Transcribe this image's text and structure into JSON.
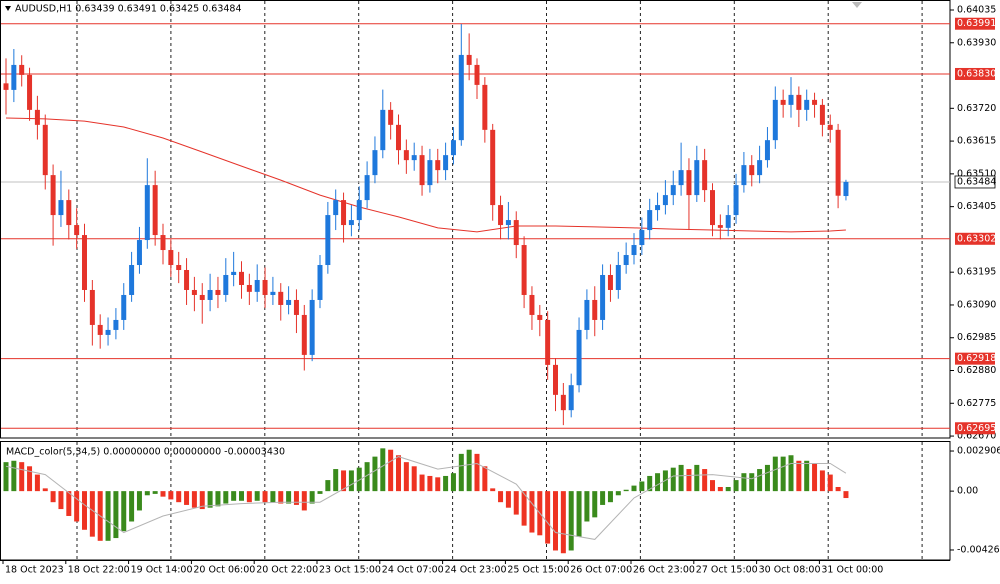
{
  "chart_data": {
    "type": "candlestick",
    "title": "AUDUSD,H1 0.63439 0.63491 0.63425 0.63484",
    "categories": [
      "18 Oct 2023",
      null,
      null,
      null,
      null,
      null,
      null,
      null,
      "18 Oct 22:00",
      null,
      null,
      null,
      null,
      null,
      null,
      null,
      "19 Oct 14:00",
      null,
      null,
      null,
      null,
      null,
      null,
      null,
      "20 Oct 06:00",
      null,
      null,
      null,
      null,
      null,
      null,
      null,
      "20 Oct 22:00",
      null,
      null,
      null,
      null,
      null,
      null,
      null,
      "23 Oct 15:00",
      null,
      null,
      null,
      null,
      null,
      null,
      null,
      "24 Oct 07:00",
      null,
      null,
      null,
      null,
      null,
      null,
      null,
      "24 Oct 23:00",
      null,
      null,
      null,
      null,
      null,
      null,
      null,
      "25 Oct 15:00",
      null,
      null,
      null,
      null,
      null,
      null,
      null,
      "26 Oct 07:00",
      null,
      null,
      null,
      null,
      null,
      null,
      null,
      "26 Oct 23:00",
      null,
      null,
      null,
      null,
      null,
      null,
      null,
      "27 Oct 15:00",
      null,
      null,
      null,
      null,
      null,
      null,
      null,
      "30 Oct 08:00",
      null,
      null,
      null,
      null,
      null,
      null,
      null,
      "31 Oct 00:00",
      null,
      null,
      null
    ],
    "ohlc": [
      [
        0.638,
        0.6388,
        0.637,
        0.63779
      ],
      [
        0.63779,
        0.6391,
        0.6374,
        0.63859
      ],
      [
        0.63859,
        0.6389,
        0.6379,
        0.63827
      ],
      [
        0.63827,
        0.6385,
        0.6368,
        0.63715
      ],
      [
        0.63715,
        0.6376,
        0.6362,
        0.63667
      ],
      [
        0.63667,
        0.637,
        0.6346,
        0.63506
      ],
      [
        0.63506,
        0.6354,
        0.6328,
        0.63378
      ],
      [
        0.63378,
        0.6352,
        0.6334,
        0.63426
      ],
      [
        0.63426,
        0.6346,
        0.633,
        0.63346
      ],
      [
        0.63346,
        0.634,
        0.6327,
        0.63314
      ],
      [
        0.63314,
        0.6335,
        0.631,
        0.63138
      ],
      [
        0.63138,
        0.6317,
        0.6296,
        0.63026
      ],
      [
        0.63026,
        0.6306,
        0.6295,
        0.62994
      ],
      [
        0.62994,
        0.6305,
        0.6296,
        0.6301
      ],
      [
        0.6301,
        0.6308,
        0.6298,
        0.63042
      ],
      [
        0.63042,
        0.6316,
        0.6301,
        0.63122
      ],
      [
        0.63122,
        0.6326,
        0.631,
        0.63218
      ],
      [
        0.63218,
        0.6334,
        0.6319,
        0.63298
      ],
      [
        0.63298,
        0.6356,
        0.6327,
        0.63474
      ],
      [
        0.63474,
        0.6352,
        0.6328,
        0.63314
      ],
      [
        0.63314,
        0.6335,
        0.6322,
        0.63266
      ],
      [
        0.63266,
        0.633,
        0.6318,
        0.63218
      ],
      [
        0.63218,
        0.6326,
        0.6316,
        0.63202
      ],
      [
        0.63202,
        0.6324,
        0.6309,
        0.63138
      ],
      [
        0.63138,
        0.6318,
        0.6307,
        0.63122
      ],
      [
        0.63122,
        0.6316,
        0.6303,
        0.63106
      ],
      [
        0.63106,
        0.6319,
        0.6307,
        0.63138
      ],
      [
        0.63138,
        0.6318,
        0.6308,
        0.63122
      ],
      [
        0.63122,
        0.6324,
        0.631,
        0.63186
      ],
      [
        0.63186,
        0.6326,
        0.6315,
        0.63196
      ],
      [
        0.63196,
        0.6323,
        0.6311,
        0.63154
      ],
      [
        0.63154,
        0.6319,
        0.6309,
        0.63132
      ],
      [
        0.63132,
        0.6322,
        0.631,
        0.6317
      ],
      [
        0.6317,
        0.6321,
        0.6308,
        0.63122
      ],
      [
        0.63122,
        0.6318,
        0.6309,
        0.63132
      ],
      [
        0.63132,
        0.6316,
        0.6304,
        0.6309
      ],
      [
        0.6309,
        0.6315,
        0.6306,
        0.63106
      ],
      [
        0.63106,
        0.6314,
        0.63,
        0.63058
      ],
      [
        0.63058,
        0.6309,
        0.6288,
        0.6293
      ],
      [
        0.6293,
        0.6314,
        0.6291,
        0.63106
      ],
      [
        0.63106,
        0.6325,
        0.6308,
        0.63218
      ],
      [
        0.63218,
        0.6342,
        0.6319,
        0.63378
      ],
      [
        0.63378,
        0.6346,
        0.6333,
        0.63426
      ],
      [
        0.63426,
        0.6345,
        0.6329,
        0.63346
      ],
      [
        0.63346,
        0.6341,
        0.6331,
        0.63362
      ],
      [
        0.63362,
        0.6347,
        0.6333,
        0.63426
      ],
      [
        0.63426,
        0.6355,
        0.634,
        0.63506
      ],
      [
        0.63506,
        0.6363,
        0.6348,
        0.63586
      ],
      [
        0.63586,
        0.6378,
        0.6356,
        0.63715
      ],
      [
        0.63715,
        0.6374,
        0.6362,
        0.63667
      ],
      [
        0.63667,
        0.637,
        0.6354,
        0.63586
      ],
      [
        0.63586,
        0.6362,
        0.6351,
        0.63554
      ],
      [
        0.63554,
        0.6361,
        0.6352,
        0.6357
      ],
      [
        0.6357,
        0.636,
        0.6344,
        0.63474
      ],
      [
        0.63474,
        0.6359,
        0.6345,
        0.63554
      ],
      [
        0.63554,
        0.6359,
        0.6348,
        0.63522
      ],
      [
        0.63522,
        0.6361,
        0.6349,
        0.6357
      ],
      [
        0.6357,
        0.6366,
        0.6354,
        0.63618
      ],
      [
        0.63618,
        0.6399,
        0.636,
        0.63891
      ],
      [
        0.63891,
        0.6396,
        0.6381,
        0.63859
      ],
      [
        0.63859,
        0.6388,
        0.6375,
        0.63795
      ],
      [
        0.63795,
        0.6382,
        0.6361,
        0.63651
      ],
      [
        0.63651,
        0.6367,
        0.6336,
        0.6341
      ],
      [
        0.6341,
        0.6344,
        0.633,
        0.63346
      ],
      [
        0.63346,
        0.6342,
        0.633,
        0.63362
      ],
      [
        0.63362,
        0.6339,
        0.6324,
        0.63282
      ],
      [
        0.63282,
        0.6331,
        0.6308,
        0.63122
      ],
      [
        0.63122,
        0.6315,
        0.6301,
        0.63058
      ],
      [
        0.63058,
        0.6309,
        0.6299,
        0.63042
      ],
      [
        0.63042,
        0.6307,
        0.6285,
        0.62898
      ],
      [
        0.62898,
        0.6292,
        0.6275,
        0.62802
      ],
      [
        0.62802,
        0.6284,
        0.62705,
        0.62753
      ],
      [
        0.62753,
        0.6287,
        0.6273,
        0.62833
      ],
      [
        0.62833,
        0.6305,
        0.6281,
        0.6301
      ],
      [
        0.6301,
        0.6314,
        0.6298,
        0.63106
      ],
      [
        0.63106,
        0.6315,
        0.6299,
        0.63042
      ],
      [
        0.63042,
        0.6322,
        0.6301,
        0.63186
      ],
      [
        0.63186,
        0.6322,
        0.631,
        0.63138
      ],
      [
        0.63138,
        0.6326,
        0.6311,
        0.63218
      ],
      [
        0.63218,
        0.6329,
        0.6319,
        0.6325
      ],
      [
        0.6325,
        0.6332,
        0.6322,
        0.63282
      ],
      [
        0.63282,
        0.6337,
        0.6325,
        0.6333
      ],
      [
        0.6333,
        0.6343,
        0.633,
        0.63394
      ],
      [
        0.63394,
        0.6345,
        0.6336,
        0.6341
      ],
      [
        0.6341,
        0.6349,
        0.6338,
        0.63442
      ],
      [
        0.63442,
        0.6352,
        0.6341,
        0.63474
      ],
      [
        0.63474,
        0.6361,
        0.6344,
        0.63522
      ],
      [
        0.63522,
        0.6356,
        0.6333,
        0.63442
      ],
      [
        0.63442,
        0.636,
        0.6342,
        0.63554
      ],
      [
        0.63554,
        0.6359,
        0.6342,
        0.63458
      ],
      [
        0.63458,
        0.6348,
        0.6331,
        0.63346
      ],
      [
        0.63346,
        0.6338,
        0.633,
        0.63337
      ],
      [
        0.63337,
        0.6341,
        0.6331,
        0.63378
      ],
      [
        0.63378,
        0.6351,
        0.6335,
        0.63474
      ],
      [
        0.63474,
        0.6358,
        0.6345,
        0.63538
      ],
      [
        0.63538,
        0.6357,
        0.6347,
        0.63506
      ],
      [
        0.63506,
        0.636,
        0.6348,
        0.63554
      ],
      [
        0.63554,
        0.6366,
        0.6353,
        0.63618
      ],
      [
        0.63618,
        0.6379,
        0.6359,
        0.63747
      ],
      [
        0.63747,
        0.6378,
        0.6369,
        0.63731
      ],
      [
        0.63731,
        0.6382,
        0.6369,
        0.63763
      ],
      [
        0.63763,
        0.6379,
        0.6366,
        0.63715
      ],
      [
        0.63715,
        0.6378,
        0.6368,
        0.63747
      ],
      [
        0.63747,
        0.6377,
        0.6369,
        0.63731
      ],
      [
        0.63731,
        0.6375,
        0.6363,
        0.63667
      ],
      [
        0.63667,
        0.637,
        0.6361,
        0.63651
      ],
      [
        0.63651,
        0.6367,
        0.634,
        0.6344
      ],
      [
        0.63439,
        0.63491,
        0.63425,
        0.63484
      ]
    ],
    "up_color": "#1e78dc",
    "down_color": "#e5332a",
    "moving_average": {
      "color": "#e5332a",
      "x": [
        0,
        5,
        10,
        15,
        20,
        25,
        30,
        35,
        40,
        45,
        50,
        55,
        60,
        65,
        70,
        75,
        80,
        85,
        90,
        95,
        100,
        105,
        107
      ],
      "values": [
        0.63689,
        0.63686,
        0.63679,
        0.6366,
        0.63625,
        0.6358,
        0.63535,
        0.6349,
        0.63442,
        0.63404,
        0.63372,
        0.63337,
        0.63324,
        0.63343,
        0.63343,
        0.6334,
        0.63337,
        0.63333,
        0.6333,
        0.63327,
        0.63324,
        0.63327,
        0.6333
      ]
    },
    "levels": [
      0.63991,
      {
        "value": 0.6383,
        "label": "0.63830"
      },
      0.63302,
      0.62918,
      0.62695
    ],
    "level_color": "#e5332a",
    "current_price": 0.63484,
    "ylim": [
      0.62667,
      0.64067
    ],
    "yticks": [
      0.64035,
      {
        "value": 0.6393,
        "label": "0.63930"
      },
      {
        "value": 0.6372,
        "label": "0.63720"
      },
      0.63615,
      {
        "value": 0.6351,
        "label": "0.63510"
      },
      0.63405,
      0.63195,
      {
        "value": 0.6309,
        "label": "0.63090"
      },
      0.62985,
      {
        "value": 0.6288,
        "label": "0.62880"
      },
      0.62775,
      {
        "value": 0.6267,
        "label": "0.62670"
      }
    ],
    "indicator": {
      "type": "bar",
      "title": "MACD_color(5,34,5) 0.00000000 0.00000000 -0.00003430",
      "up_color": "#3a8a1c",
      "down_color": "#ee3322",
      "values": [
        0.0021,
        0.0022,
        0.0021,
        0.0018,
        0.0012,
        0.0002,
        -0.0008,
        -0.0013,
        -0.0018,
        -0.0022,
        -0.0028,
        -0.0033,
        -0.0036,
        -0.0036,
        -0.0034,
        -0.0029,
        -0.0022,
        -0.0014,
        -0.0003,
        -0.0002,
        -0.0004,
        -0.0006,
        -0.0008,
        -0.001,
        -0.0012,
        -0.0013,
        -0.0012,
        -0.0011,
        -0.0009,
        -0.0007,
        -0.0007,
        -0.0008,
        -0.0007,
        -0.0008,
        -0.0008,
        -0.0009,
        -0.0009,
        -0.001,
        -0.0014,
        -0.0009,
        -0.0002,
        0.0008,
        0.0016,
        0.0015,
        0.0015,
        0.0017,
        0.0021,
        0.0025,
        0.0031,
        0.003,
        0.0026,
        0.0021,
        0.0018,
        0.0012,
        0.0011,
        0.001,
        0.0011,
        0.0013,
        0.0027,
        0.003,
        0.0027,
        0.0018,
        0.0002,
        -0.0008,
        -0.0012,
        -0.0017,
        -0.0025,
        -0.003,
        -0.0032,
        -0.0038,
        -0.0043,
        -0.0045,
        -0.0043,
        -0.0033,
        -0.0022,
        -0.0019,
        -0.001,
        -0.0008,
        -0.0003,
        0.0001,
        0.0004,
        0.0007,
        0.0011,
        0.0013,
        0.0015,
        0.0017,
        0.0019,
        0.0016,
        0.0019,
        0.0016,
        0.0008,
        0.0003,
        0.0003,
        0.0008,
        0.0013,
        0.0013,
        0.0016,
        0.0019,
        0.0025,
        0.0025,
        0.0026,
        0.0022,
        0.0022,
        0.002,
        0.0015,
        0.0012,
        0.0003,
        -0.0005
      ],
      "signal": {
        "color": "#b4b4b4",
        "x": [
          0,
          5,
          10,
          15,
          20,
          25,
          30,
          35,
          40,
          45,
          50,
          55,
          60,
          65,
          70,
          75,
          80,
          85,
          90,
          95,
          100,
          105,
          107
        ],
        "values": [
          0.0018,
          0.0012,
          -0.001,
          -0.003,
          -0.0018,
          -0.0011,
          -0.0009,
          -0.0008,
          -0.0008,
          0.0008,
          0.0025,
          0.0016,
          0.002,
          0.0005,
          -0.003,
          -0.0035,
          -0.0005,
          0.0011,
          0.0012,
          0.0009,
          0.002,
          0.002,
          0.0013
        ]
      },
      "ylim": [
        -0.00499,
        0.00356
      ],
      "yticks": [
        0.0029061,
        {
          "value": 0,
          "label": "0.00"
        },
        -0.004264
      ]
    }
  }
}
